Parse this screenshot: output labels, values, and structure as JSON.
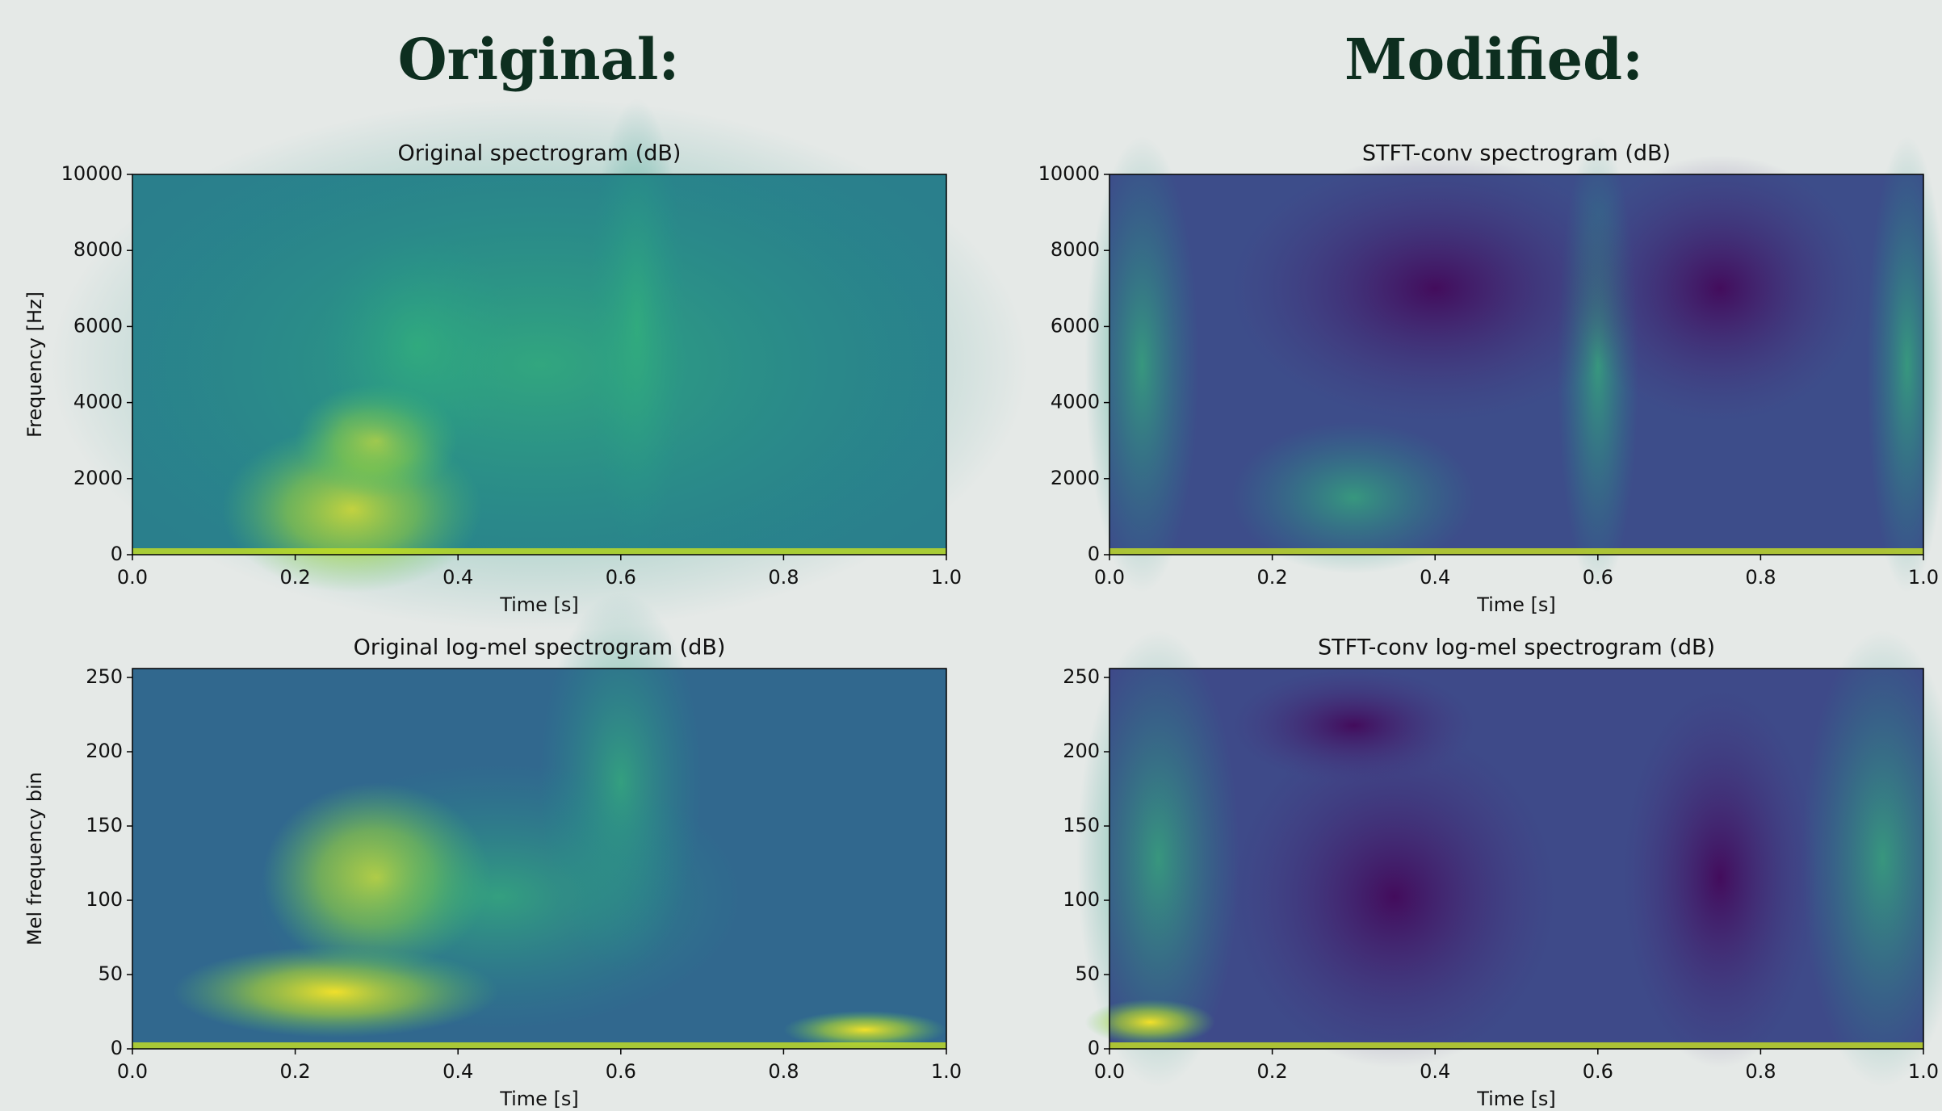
{
  "headings": {
    "left": "Original:",
    "right": "Modified:"
  },
  "chart_data": [
    {
      "type": "heatmap",
      "title": "Original spectrogram (dB)",
      "xlabel": "Time [s]",
      "ylabel": "Frequency [Hz]",
      "xlim": [
        0,
        1
      ],
      "xticks": [
        {
          "value": 0,
          "label": "0.0"
        },
        {
          "value": 0.2,
          "label": "0.2"
        },
        {
          "value": 0.4,
          "label": "0.4"
        },
        {
          "value": 0.6,
          "label": "0.6"
        },
        {
          "value": 0.8,
          "label": "0.8"
        },
        {
          "value": 1,
          "label": "1.0"
        }
      ],
      "ylim": [
        0,
        10000
      ],
      "yticks": [
        0,
        2000,
        4000,
        6000,
        8000,
        10000
      ],
      "colormap": "viridis"
    },
    {
      "type": "heatmap",
      "title": "STFT-conv spectrogram (dB)",
      "xlabel": "Time [s]",
      "xlim": [
        0,
        1
      ],
      "xticks": [
        {
          "value": 0,
          "label": "0.0"
        },
        {
          "value": 0.2,
          "label": "0.2"
        },
        {
          "value": 0.4,
          "label": "0.4"
        },
        {
          "value": 0.6,
          "label": "0.6"
        },
        {
          "value": 0.8,
          "label": "0.8"
        },
        {
          "value": 1,
          "label": "1.0"
        }
      ],
      "ylim": [
        0,
        10000
      ],
      "yticks": [
        0,
        2000,
        4000,
        6000,
        8000,
        10000
      ],
      "colormap": "viridis"
    },
    {
      "type": "heatmap",
      "title": "Original log-mel spectrogram (dB)",
      "xlabel": "Time [s]",
      "ylabel": "Mel frequency bin",
      "xlim": [
        0,
        1
      ],
      "xticks": [
        {
          "value": 0,
          "label": "0.0"
        },
        {
          "value": 0.2,
          "label": "0.2"
        },
        {
          "value": 0.4,
          "label": "0.4"
        },
        {
          "value": 0.6,
          "label": "0.6"
        },
        {
          "value": 0.8,
          "label": "0.8"
        },
        {
          "value": 1,
          "label": "1.0"
        }
      ],
      "ylim": [
        0,
        256
      ],
      "yticks": [
        0,
        50,
        100,
        150,
        200,
        250
      ],
      "colormap": "viridis"
    },
    {
      "type": "heatmap",
      "title": "STFT-conv log-mel spectrogram (dB)",
      "xlabel": "Time [s]",
      "xlim": [
        0,
        1
      ],
      "xticks": [
        {
          "value": 0,
          "label": "0.0"
        },
        {
          "value": 0.2,
          "label": "0.2"
        },
        {
          "value": 0.4,
          "label": "0.4"
        },
        {
          "value": 0.6,
          "label": "0.6"
        },
        {
          "value": 0.8,
          "label": "0.8"
        },
        {
          "value": 1,
          "label": "1.0"
        }
      ],
      "ylim": [
        0,
        256
      ],
      "yticks": [
        0,
        50,
        100,
        150,
        200,
        250
      ],
      "colormap": "viridis"
    }
  ]
}
